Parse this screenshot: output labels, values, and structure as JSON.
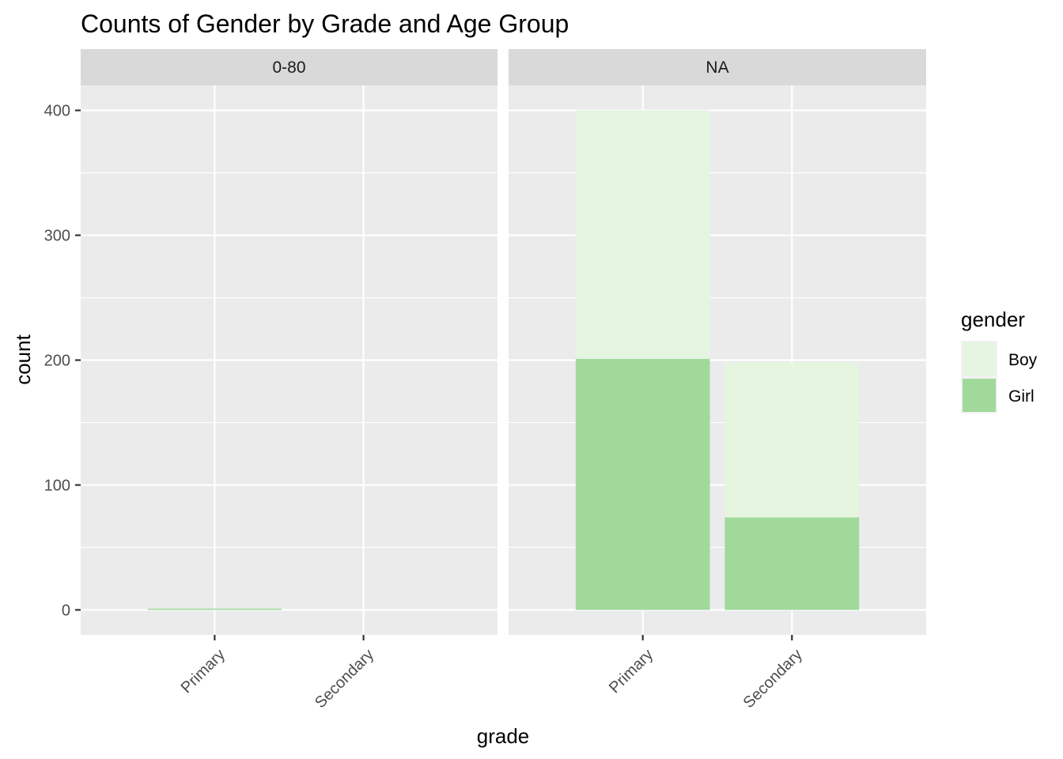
{
  "chart_data": {
    "type": "bar",
    "stacked": true,
    "title": "Counts of Gender by Grade and Age Group",
    "xlabel": "grade",
    "ylabel": "count",
    "ylim": [
      -20,
      420
    ],
    "yticks": [
      0,
      100,
      200,
      300,
      400
    ],
    "categories": [
      "Primary",
      "Secondary"
    ],
    "grid": true,
    "legend": {
      "title": "gender",
      "placement": "right",
      "entries": [
        {
          "name": "Boy",
          "color": "#e5f5e0"
        },
        {
          "name": "Girl",
          "color": "#a1d99b"
        }
      ]
    },
    "facets": [
      {
        "label": "0-80",
        "series": [
          {
            "name": "Girl",
            "color": "#a1d99b",
            "values": [
              1,
              0
            ]
          },
          {
            "name": "Boy",
            "color": "#e5f5e0",
            "values": [
              0,
              0
            ]
          }
        ]
      },
      {
        "label": "NA",
        "series": [
          {
            "name": "Girl",
            "color": "#a1d99b",
            "values": [
              201,
              74
            ]
          },
          {
            "name": "Boy",
            "color": "#e5f5e0",
            "values": [
              199,
              124
            ]
          }
        ]
      }
    ]
  }
}
